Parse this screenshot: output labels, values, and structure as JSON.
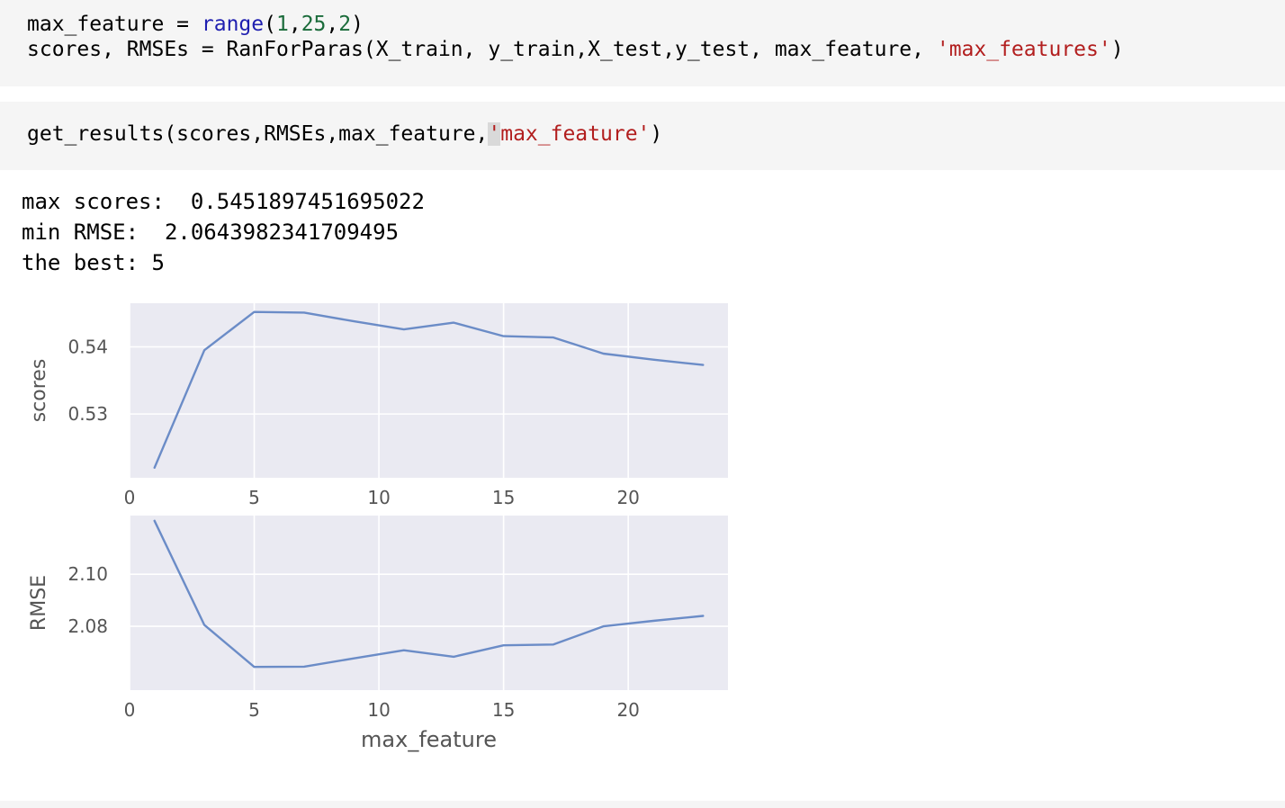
{
  "cells": {
    "cell1": {
      "line1": {
        "a": "max_feature = ",
        "fn": "range",
        "b": "(",
        "n1": "1",
        "c1": ",",
        "n2": "25",
        "c2": ",",
        "n3": "2",
        "end": ")"
      },
      "line2": {
        "a": "scores, RMSEs = RanForParas(X_train, y_train,X_test,y_test, max_feature, ",
        "str": "'max_features'",
        "end": ")"
      }
    },
    "cell2": {
      "line1": {
        "a": "get_results(scores,RMSEs,max_feature,",
        "cursor": "'",
        "str": "max_feature'",
        "end": ")"
      }
    }
  },
  "output": {
    "line1": "max scores:  0.5451897451695022",
    "line2": "min RMSE:  2.0643982341709495",
    "line3": "the best: 5"
  },
  "colors": {
    "plot_bg": "#eaeaf2",
    "line": "#6b8cc7",
    "grid": "#ffffff",
    "tick_text": "#555555"
  },
  "chart_data": [
    {
      "type": "line",
      "title": "",
      "xlabel": "",
      "ylabel": "scores",
      "xlim": [
        0,
        24
      ],
      "ylim": [
        0.5205,
        0.5465
      ],
      "xticks": [
        0,
        5,
        10,
        15,
        20
      ],
      "yticks": [
        0.53,
        0.54
      ],
      "ytick_labels": [
        "0.53",
        "0.54"
      ],
      "grid": true,
      "x": [
        1,
        3,
        5,
        7,
        9,
        11,
        13,
        15,
        17,
        19,
        21,
        23
      ],
      "series": [
        {
          "values": [
            0.522,
            0.5395,
            0.5452,
            0.5451,
            0.5438,
            0.5426,
            0.5436,
            0.5416,
            0.5414,
            0.539,
            0.5381,
            0.5373
          ]
        }
      ]
    },
    {
      "type": "line",
      "title": "",
      "xlabel": "max_feature",
      "ylabel": "RMSE",
      "xlim": [
        0,
        24
      ],
      "ylim": [
        2.0555,
        2.1225
      ],
      "xticks": [
        0,
        5,
        10,
        15,
        20
      ],
      "yticks": [
        2.08,
        2.1
      ],
      "ytick_labels": [
        "2.08",
        "2.10"
      ],
      "grid": true,
      "x": [
        1,
        3,
        5,
        7,
        9,
        11,
        13,
        15,
        17,
        19,
        21,
        23
      ],
      "series": [
        {
          "values": [
            2.1205,
            2.0805,
            2.0644,
            2.0645,
            2.0677,
            2.0708,
            2.0683,
            2.0727,
            2.073,
            2.08,
            2.0821,
            2.084
          ]
        }
      ]
    }
  ]
}
